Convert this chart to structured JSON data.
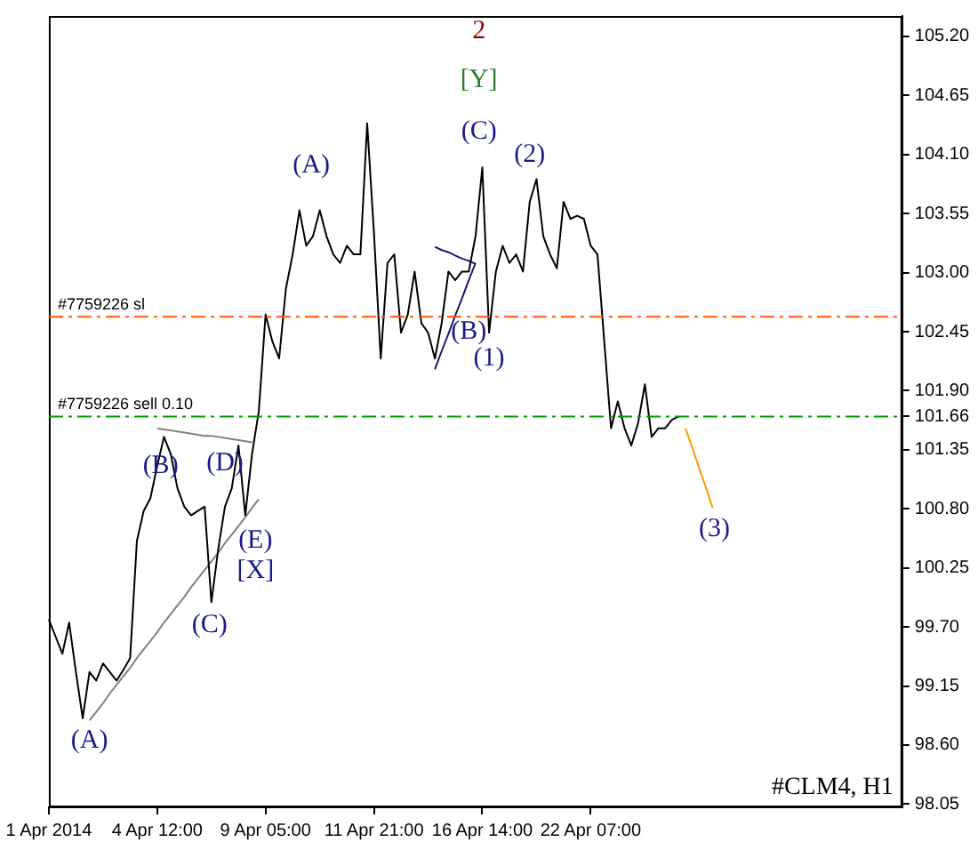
{
  "chart_data": {
    "type": "line",
    "marker": "none",
    "grid": false,
    "legend": false,
    "categories": [
      "1 Apr 2014",
      null,
      null,
      null,
      null,
      null,
      null,
      null,
      null,
      null,
      null,
      null,
      null,
      null,
      null,
      null,
      "4 Apr 12:00",
      null,
      null,
      null,
      null,
      null,
      null,
      null,
      null,
      null,
      null,
      null,
      null,
      null,
      null,
      null,
      "9 Apr 05:00",
      null,
      null,
      null,
      null,
      null,
      null,
      null,
      null,
      null,
      null,
      null,
      null,
      null,
      null,
      null,
      "11 Apr 21:00",
      null,
      null,
      null,
      null,
      null,
      null,
      null,
      null,
      null,
      null,
      null,
      null,
      null,
      null,
      null,
      "16 Apr 14:00",
      null,
      null,
      null,
      null,
      null,
      null,
      null,
      null,
      null,
      null,
      null,
      null,
      null,
      null,
      null,
      "22 Apr 07:00",
      null,
      null,
      null,
      null,
      null,
      null,
      null,
      null,
      null,
      null,
      null,
      null,
      null,
      null,
      null,
      null,
      null,
      null,
      null,
      null,
      null,
      null,
      null,
      null,
      null,
      null,
      null,
      null,
      null,
      null,
      null,
      null,
      null,
      null,
      null,
      null,
      null,
      null,
      null,
      null,
      null,
      null,
      null,
      null,
      null,
      null
    ],
    "series": [
      {
        "color": "#000000",
        "values": [
          99.77,
          99.61,
          99.45,
          99.74,
          99.28,
          98.85,
          99.28,
          99.2,
          99.36,
          99.28,
          99.2,
          99.3,
          99.41,
          100.5,
          100.78,
          100.9,
          101.2,
          101.47,
          101.31,
          100.99,
          100.82,
          100.74,
          100.78,
          100.82,
          99.93,
          100.42,
          100.82,
          100.99,
          101.39,
          100.74,
          101.31,
          101.71,
          102.61,
          102.36,
          102.2,
          102.85,
          103.17,
          103.58,
          103.25,
          103.34,
          103.58,
          103.34,
          103.17,
          103.09,
          103.25,
          103.17,
          103.17,
          104.39,
          103.37,
          102.2,
          103.09,
          103.17,
          102.44,
          102.61,
          103.01,
          102.53,
          102.44,
          102.2,
          102.53,
          103.01,
          102.93,
          103.01,
          103.01,
          103.34,
          103.98,
          102.44,
          103.01,
          103.25,
          103.09,
          103.17,
          103.01,
          103.66,
          103.87,
          103.34,
          103.17,
          103.04,
          103.66,
          103.5,
          103.53,
          103.5,
          103.25,
          103.17,
          102.36,
          101.55,
          101.8,
          101.55,
          101.39,
          101.6,
          101.96,
          101.47,
          101.55,
          101.55,
          101.63,
          101.66,
          null,
          null,
          null,
          null,
          null,
          null,
          null,
          null,
          null,
          null,
          null,
          null,
          null,
          null,
          null,
          null,
          null,
          null,
          null,
          null,
          null,
          null,
          null,
          null,
          null,
          null,
          null,
          null,
          null,
          null,
          null,
          null,
          null
        ]
      },
      {
        "color": "#808080",
        "values": [
          null,
          null,
          null,
          null,
          null,
          null,
          98.83,
          98.91,
          98.99,
          99.08,
          99.16,
          99.24,
          99.32,
          99.41,
          99.49,
          99.57,
          99.65,
          99.74,
          99.82,
          99.9,
          99.98,
          100.07,
          100.15,
          100.23,
          100.31,
          100.39,
          100.48,
          100.56,
          100.64,
          100.72,
          100.81,
          100.89,
          null,
          null,
          null,
          null,
          null,
          null,
          null,
          null,
          null,
          null,
          null,
          null,
          null,
          null,
          null,
          null,
          null,
          null,
          null,
          null,
          null,
          null,
          null,
          null,
          null,
          null,
          null,
          null,
          null,
          null,
          null,
          null,
          null,
          null,
          null,
          null,
          null,
          null,
          null,
          null,
          null,
          null,
          null,
          null,
          null,
          null,
          null,
          null,
          null,
          null,
          null,
          null,
          null,
          null,
          null,
          null,
          null,
          null,
          null,
          null,
          null,
          null,
          null,
          null,
          null,
          null,
          null,
          null,
          null,
          null,
          null,
          null,
          null,
          null,
          null,
          null,
          null,
          null,
          null,
          null,
          null,
          null,
          null,
          null,
          null,
          null,
          null,
          null,
          null,
          null,
          null,
          null,
          null,
          null,
          null
        ]
      },
      {
        "color": "#808080",
        "values": [
          null,
          null,
          null,
          null,
          null,
          null,
          null,
          null,
          null,
          null,
          null,
          null,
          null,
          null,
          null,
          null,
          101.55,
          101.54,
          101.53,
          101.52,
          101.51,
          101.5,
          101.49,
          101.48,
          101.48,
          101.47,
          101.46,
          101.45,
          101.44,
          101.43,
          101.42,
          null,
          null,
          null,
          null,
          null,
          null,
          null,
          null,
          null,
          null,
          null,
          null,
          null,
          null,
          null,
          null,
          null,
          null,
          null,
          null,
          null,
          null,
          null,
          null,
          null,
          null,
          null,
          null,
          null,
          null,
          null,
          null,
          null,
          null,
          null,
          null,
          null,
          null,
          null,
          null,
          null,
          null,
          null,
          null,
          null,
          null,
          null,
          null,
          null,
          null,
          null,
          null,
          null,
          null,
          null,
          null,
          null,
          null,
          null,
          null,
          null,
          null,
          null,
          null,
          null,
          null,
          null,
          null,
          null,
          null,
          null,
          null,
          null,
          null,
          null,
          null,
          null,
          null,
          null,
          null,
          null,
          null,
          null,
          null,
          null,
          null,
          null,
          null,
          null,
          null,
          null,
          null,
          null,
          null,
          null,
          null
        ]
      },
      {
        "color": "#1a1a6e",
        "values": [
          null,
          null,
          null,
          null,
          null,
          null,
          null,
          null,
          null,
          null,
          null,
          null,
          null,
          null,
          null,
          null,
          null,
          null,
          null,
          null,
          null,
          null,
          null,
          null,
          null,
          null,
          null,
          null,
          null,
          null,
          null,
          null,
          null,
          null,
          null,
          null,
          null,
          null,
          null,
          null,
          null,
          null,
          null,
          null,
          null,
          null,
          null,
          null,
          null,
          null,
          null,
          null,
          null,
          null,
          null,
          null,
          null,
          102.1,
          102.27,
          102.43,
          102.6,
          102.76,
          102.93,
          103.09,
          null,
          null,
          null,
          null,
          null,
          null,
          null,
          null,
          null,
          null,
          null,
          null,
          null,
          null,
          null,
          null,
          null,
          null,
          null,
          null,
          null,
          null,
          null,
          null,
          null,
          null,
          null,
          null,
          null,
          null,
          null,
          null,
          null,
          null,
          null,
          null,
          null,
          null,
          null,
          null,
          null,
          null,
          null,
          null,
          null,
          null,
          null,
          null,
          null,
          null,
          null,
          null,
          null,
          null,
          null,
          null,
          null,
          null,
          null,
          null,
          null,
          null,
          null
        ]
      },
      {
        "color": "#1a1a6e",
        "values": [
          null,
          null,
          null,
          null,
          null,
          null,
          null,
          null,
          null,
          null,
          null,
          null,
          null,
          null,
          null,
          null,
          null,
          null,
          null,
          null,
          null,
          null,
          null,
          null,
          null,
          null,
          null,
          null,
          null,
          null,
          null,
          null,
          null,
          null,
          null,
          null,
          null,
          null,
          null,
          null,
          null,
          null,
          null,
          null,
          null,
          null,
          null,
          null,
          null,
          null,
          null,
          null,
          null,
          null,
          null,
          null,
          null,
          103.24,
          103.21,
          103.19,
          103.16,
          103.13,
          103.11,
          103.08,
          null,
          null,
          null,
          null,
          null,
          null,
          null,
          null,
          null,
          null,
          null,
          null,
          null,
          null,
          null,
          null,
          null,
          null,
          null,
          null,
          null,
          null,
          null,
          null,
          null,
          null,
          null,
          null,
          null,
          null,
          null,
          null,
          null,
          null,
          null,
          null,
          null,
          null,
          null,
          null,
          null,
          null,
          null,
          null,
          null,
          null,
          null,
          null,
          null,
          null,
          null,
          null,
          null,
          null,
          null,
          null,
          null,
          null,
          null,
          null,
          null,
          null,
          null
        ]
      },
      {
        "color": "#ff9900",
        "values": [
          null,
          null,
          null,
          null,
          null,
          null,
          null,
          null,
          null,
          null,
          null,
          null,
          null,
          null,
          null,
          null,
          null,
          null,
          null,
          null,
          null,
          null,
          null,
          null,
          null,
          null,
          null,
          null,
          null,
          null,
          null,
          null,
          null,
          null,
          null,
          null,
          null,
          null,
          null,
          null,
          null,
          null,
          null,
          null,
          null,
          null,
          null,
          null,
          null,
          null,
          null,
          null,
          null,
          null,
          null,
          null,
          null,
          null,
          null,
          null,
          null,
          null,
          null,
          null,
          null,
          null,
          null,
          null,
          null,
          null,
          null,
          null,
          null,
          null,
          null,
          null,
          null,
          null,
          null,
          null,
          null,
          null,
          null,
          null,
          null,
          null,
          null,
          null,
          null,
          null,
          null,
          null,
          null,
          null,
          101.55,
          101.37,
          101.18,
          101.0,
          100.81,
          null,
          null,
          null,
          null,
          null,
          null,
          null,
          null,
          null,
          null,
          null,
          null,
          null,
          null,
          null,
          null,
          null,
          null,
          null,
          null,
          null,
          null,
          null,
          null,
          null,
          null,
          null,
          null
        ]
      }
    ],
    "ylim": [
      98.02,
      105.39
    ],
    "yticks": [
      {
        "value": 98.05,
        "label": "98.05"
      },
      {
        "value": 98.6,
        "label": "98.60"
      },
      {
        "value": 99.15,
        "label": "99.15"
      },
      {
        "value": 99.7,
        "label": "99.70"
      },
      {
        "value": 100.25,
        "label": "100.25"
      },
      {
        "value": 100.8,
        "label": "100.80"
      },
      {
        "value": 101.35,
        "label": "101.35"
      },
      101.66,
      {
        "value": 101.9,
        "label": "101.90"
      },
      {
        "value": 102.45,
        "label": "102.45"
      },
      {
        "value": 103.0,
        "label": "103.00"
      },
      {
        "value": 103.55,
        "label": "103.55"
      },
      {
        "value": 104.1,
        "label": "104.10"
      },
      {
        "value": 104.65,
        "label": "104.65"
      },
      {
        "value": 105.2,
        "label": "105.20"
      }
    ],
    "ref_lines": [
      {
        "axis": "y",
        "value": 102.59,
        "label": "#7759226 sl",
        "color": "#ff5500",
        "line_style": "dashed"
      },
      {
        "axis": "y",
        "value": 101.66,
        "label": "#7759226 sell 0.10",
        "color": "#009900",
        "line_style": "dashed"
      }
    ],
    "annotations": [
      "2",
      "[Y]",
      "(C)",
      "(A)",
      "(2)",
      "(B)",
      "(1)",
      "(B)",
      "(D)",
      "(E)",
      "[X]",
      "(C)",
      "(A)",
      "(3)",
      "#CLM4, H1"
    ]
  }
}
